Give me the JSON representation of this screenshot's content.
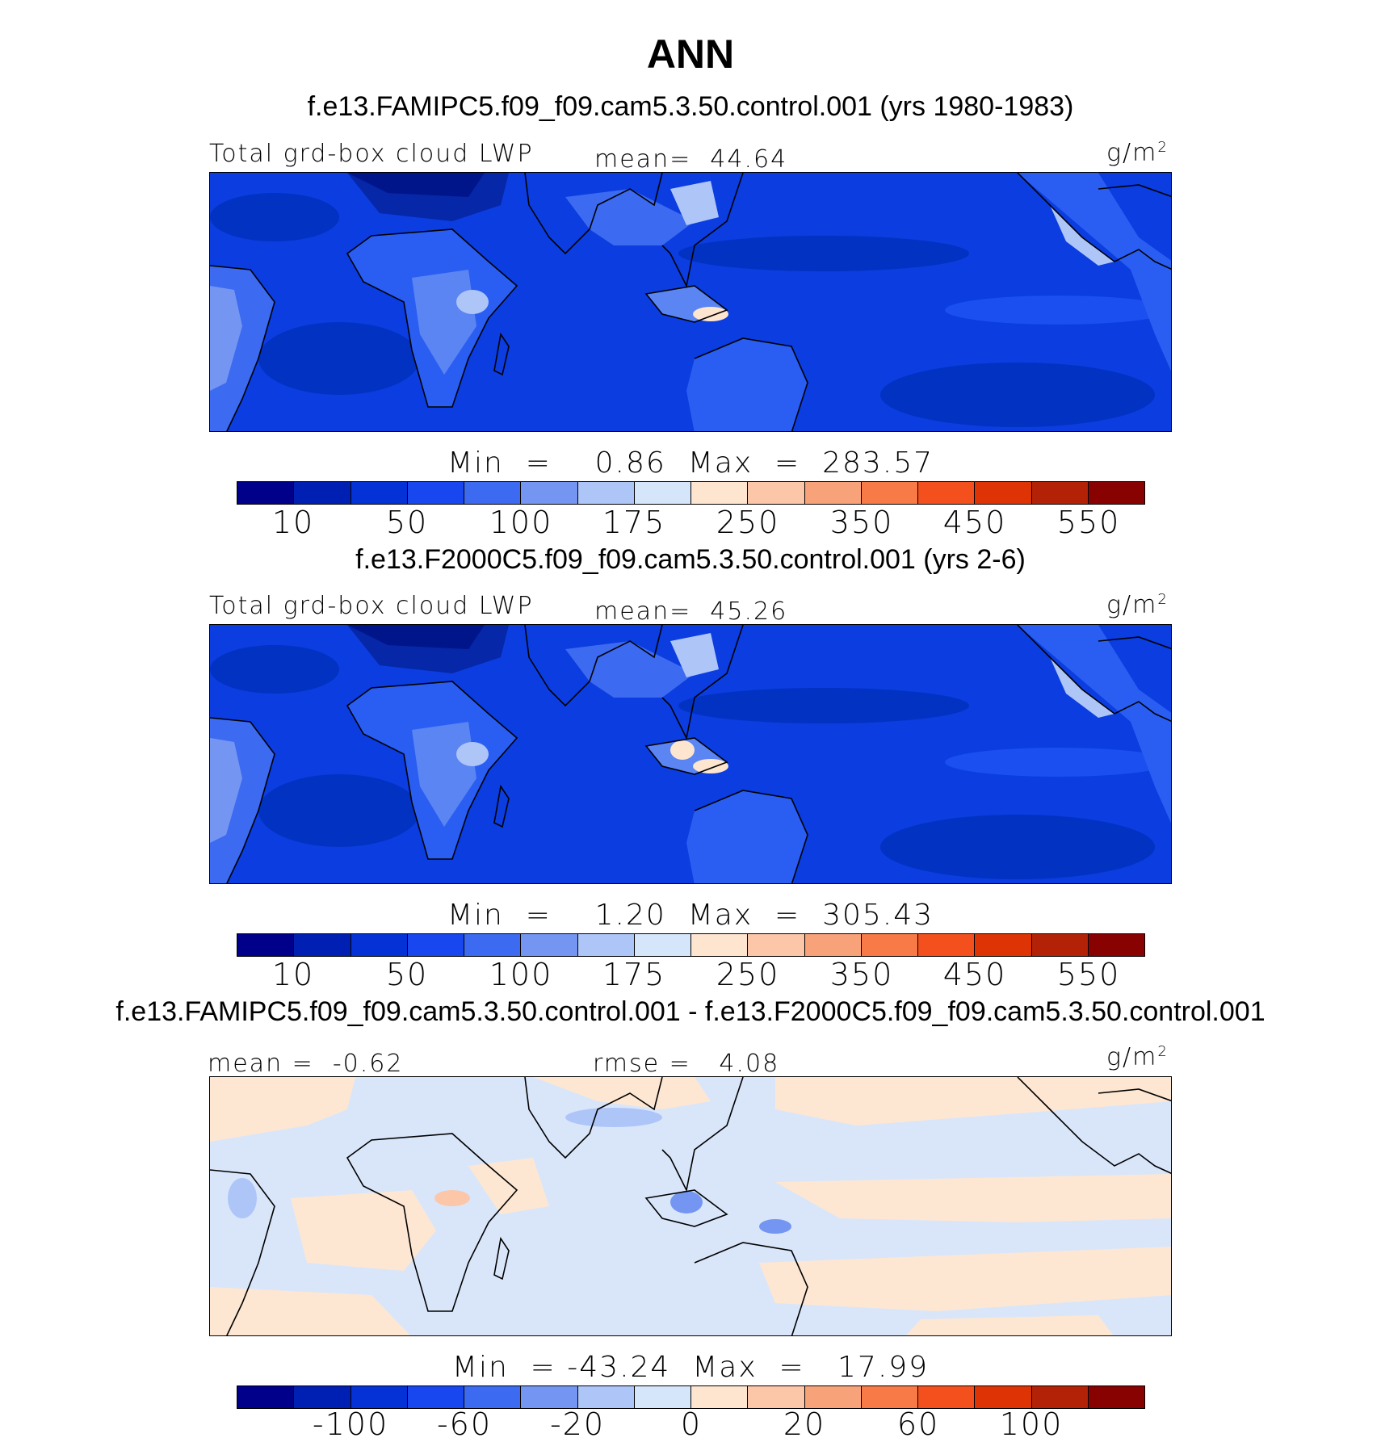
{
  "title": "ANN",
  "panels": [
    {
      "case_title": "f.e13.FAMIPC5.f09_f09.cam5.3.50.control.001 (yrs 1980-1983)",
      "left_string": "Total grd-box cloud LWP",
      "center_string": "mean=  44.64",
      "units": "g/m",
      "units_sup": "2",
      "minmax": "Min  =    0.86  Max  =  283.57",
      "colorbar_ticks": [
        "10",
        "50",
        "100",
        "175",
        "250",
        "350",
        "450",
        "550"
      ]
    },
    {
      "case_title": "f.e13.F2000C5.f09_f09.cam5.3.50.control.001 (yrs 2-6)",
      "left_string": "Total grd-box cloud LWP",
      "center_string": "mean=  45.26",
      "units": "g/m",
      "units_sup": "2",
      "minmax": "Min  =    1.20  Max  =  305.43",
      "colorbar_ticks": [
        "10",
        "50",
        "100",
        "175",
        "250",
        "350",
        "450",
        "550"
      ]
    },
    {
      "case_title": "f.e13.FAMIPC5.f09_f09.cam5.3.50.control.001 - f.e13.F2000C5.f09_f09.cam5.3.50.control.001",
      "left_string": "mean =  -0.62",
      "center_string": "rmse =   4.08",
      "units": "g/m",
      "units_sup": "2",
      "minmax": "Min  = -43.24  Max  =   17.99",
      "colorbar_ticks": [
        "-100",
        "-60",
        "-20",
        "0",
        "20",
        "60",
        "100"
      ]
    }
  ],
  "colors": {
    "colorbar": [
      "#00008a",
      "#0020b4",
      "#0532d6",
      "#1847f0",
      "#3c6af0",
      "#7496f2",
      "#aec5f8",
      "#d6e6fa",
      "#fde5d0",
      "#fbc7a8",
      "#f8a27a",
      "#f77a47",
      "#f3501e",
      "#de3304",
      "#b32207",
      "#880202"
    ],
    "ocean_base": "#0b3de0",
    "diff_base": "#d9e6fa",
    "diff_warm": "#fde7d3"
  }
}
